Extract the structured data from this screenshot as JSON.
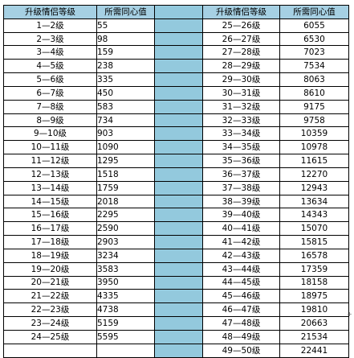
{
  "headers": {
    "left_level": "升级情侣等级",
    "left_value": "所需同心值",
    "right_level": "升级情侣等级",
    "right_value": "所需同心值"
  },
  "left_rows": [
    {
      "level": "1—2级",
      "value": "55"
    },
    {
      "level": "2—3级",
      "value": "98"
    },
    {
      "level": "3—4级",
      "value": "159"
    },
    {
      "level": "4—5级",
      "value": "238"
    },
    {
      "level": "5—6级",
      "value": "335"
    },
    {
      "level": "6—7级",
      "value": "450"
    },
    {
      "level": "7—8级",
      "value": "583"
    },
    {
      "level": "8—9级",
      "value": "734"
    },
    {
      "level": "9—10级",
      "value": "903"
    },
    {
      "level": "10—11级",
      "value": "1090"
    },
    {
      "level": "11—12级",
      "value": "1295"
    },
    {
      "level": "12—13级",
      "value": "1518"
    },
    {
      "level": "13—14级",
      "value": "1759"
    },
    {
      "level": "14—15级",
      "value": "2018"
    },
    {
      "level": "15—16级",
      "value": "2295"
    },
    {
      "level": "16—17级",
      "value": "2590"
    },
    {
      "level": "17—18级",
      "value": "2903"
    },
    {
      "level": "18—19级",
      "value": "3234"
    },
    {
      "level": "19—20级",
      "value": "3583"
    },
    {
      "level": "20—21级",
      "value": "3950"
    },
    {
      "level": "21—22级",
      "value": "4335"
    },
    {
      "level": "22—23级",
      "value": "4738"
    },
    {
      "level": "23—24级",
      "value": "5159"
    },
    {
      "level": "24—25级",
      "value": "5595"
    }
  ],
  "right_rows": [
    {
      "level": "25—26级",
      "value": "6055"
    },
    {
      "level": "26—27级",
      "value": "6530"
    },
    {
      "level": "27—28级",
      "value": "7023"
    },
    {
      "level": "28—29级",
      "value": "7534"
    },
    {
      "level": "29—30级",
      "value": "8063"
    },
    {
      "level": "30—31级",
      "value": "8610"
    },
    {
      "level": "31—32级",
      "value": "9175"
    },
    {
      "level": "32—33级",
      "value": "9758"
    },
    {
      "level": "33—34级",
      "value": "10359"
    },
    {
      "level": "34—35级",
      "value": "10978"
    },
    {
      "level": "35—36级",
      "value": "11615"
    },
    {
      "level": "36—37级",
      "value": "12270"
    },
    {
      "level": "37—38级",
      "value": "12943"
    },
    {
      "level": "38—39级",
      "value": "13634"
    },
    {
      "level": "39—40级",
      "value": "14343"
    },
    {
      "level": "40—41级",
      "value": "15070"
    },
    {
      "level": "41—42级",
      "value": "15815"
    },
    {
      "level": "42—43级",
      "value": "16578"
    },
    {
      "level": "43—44级",
      "value": "17359"
    },
    {
      "level": "44—45级",
      "value": "18158"
    },
    {
      "level": "45—46级",
      "value": "18975"
    },
    {
      "level": "46—47级",
      "value": "19810"
    },
    {
      "level": "47—48级",
      "value": "20663"
    },
    {
      "level": "48—49级",
      "value": "21534"
    },
    {
      "level": "49—50级",
      "value": "22441"
    }
  ]
}
